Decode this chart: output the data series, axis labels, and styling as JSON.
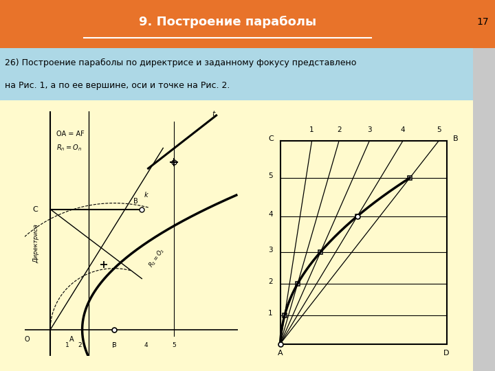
{
  "slide_bg": "#f5f5dc",
  "header_bg": "#e8732a",
  "header_text": "9. Построение параболы",
  "header_text_color": "#ffffff",
  "page_num": "17",
  "subheader_bg": "#add8e6",
  "subheader_line1": "26) Построение параболы по директрисе и заданному фокусу представлено",
  "subheader_line2": "на Рис. 1, а по ее вершине, оси и точке на Рис. 2.",
  "subheader_text_color": "#000000",
  "content_bg": "#fffacd",
  "outer_bg": "#c8c8c8"
}
